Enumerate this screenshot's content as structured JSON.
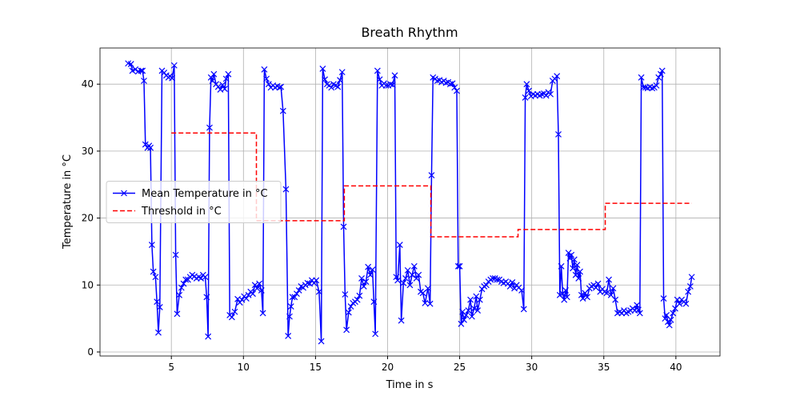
{
  "chart_data": {
    "type": "line",
    "title": "Breath Rhythm",
    "x_label": "Time in s",
    "y_label": "Temperature in °C",
    "xlim": [
      0.05,
      43.06
    ],
    "ylim": [
      -0.6,
      45.4
    ],
    "xticks": [
      5,
      10,
      15,
      20,
      25,
      30,
      35,
      40
    ],
    "yticks": [
      0,
      10,
      20,
      30,
      40
    ],
    "grid": true,
    "legend": "center left",
    "series": [
      {
        "name": "Mean Temperature in °C",
        "color": "#0000ff",
        "linestyle": "solid",
        "marker": "x",
        "x": [
          2.0,
          2.2,
          2.3,
          2.5,
          2.7,
          2.9,
          3.0,
          3.1,
          3.2,
          3.35,
          3.45,
          3.55,
          3.65,
          3.75,
          3.9,
          4.0,
          4.1,
          4.2,
          4.35,
          4.5,
          4.65,
          4.8,
          4.9,
          5.05,
          5.2,
          5.3,
          5.4,
          5.55,
          5.7,
          5.85,
          6.0,
          6.15,
          6.3,
          6.45,
          6.6,
          6.75,
          6.9,
          7.05,
          7.2,
          7.35,
          7.45,
          7.55,
          7.65,
          7.75,
          7.85,
          7.95,
          8.1,
          8.25,
          8.4,
          8.55,
          8.7,
          8.8,
          8.95,
          9.05,
          9.2,
          9.4,
          9.6,
          9.75,
          9.9,
          10.05,
          10.2,
          10.35,
          10.5,
          10.65,
          10.8,
          10.95,
          11.1,
          11.25,
          11.35,
          11.45,
          11.6,
          11.75,
          11.9,
          12.05,
          12.2,
          12.35,
          12.5,
          12.6,
          12.75,
          12.95,
          13.1,
          13.2,
          13.3,
          13.4,
          13.55,
          13.7,
          13.85,
          14.0,
          14.15,
          14.3,
          14.45,
          14.6,
          14.75,
          14.9,
          15.05,
          15.25,
          15.4,
          15.5,
          15.65,
          15.8,
          15.95,
          16.1,
          16.25,
          16.4,
          16.55,
          16.7,
          16.85,
          16.95,
          17.05,
          17.15,
          17.3,
          17.45,
          17.6,
          17.75,
          17.9,
          18.05,
          18.2,
          18.35,
          18.5,
          18.65,
          18.8,
          18.95,
          19.05,
          19.15,
          19.3,
          19.45,
          19.6,
          19.75,
          19.9,
          20.05,
          20.2,
          20.35,
          20.5,
          20.6,
          20.7,
          20.85,
          20.95,
          21.1,
          21.25,
          21.4,
          21.55,
          21.7,
          21.85,
          22.0,
          22.15,
          22.3,
          22.45,
          22.6,
          22.8,
          22.95,
          23.05,
          23.15,
          23.3,
          23.45,
          23.6,
          23.75,
          23.9,
          24.05,
          24.2,
          24.35,
          24.5,
          24.65,
          24.8,
          24.9,
          25.0,
          25.1,
          25.2,
          25.3,
          25.45,
          25.6,
          25.75,
          25.85,
          26.0,
          26.15,
          26.25,
          26.4,
          26.55,
          26.7,
          26.85,
          27.0,
          27.15,
          27.3,
          27.45,
          27.6,
          27.75,
          27.9,
          28.05,
          28.2,
          28.35,
          28.5,
          28.65,
          28.8,
          28.95,
          29.1,
          29.3,
          29.45,
          29.55,
          29.65,
          29.8,
          29.95,
          30.1,
          30.25,
          30.4,
          30.55,
          30.7,
          30.85,
          31.0,
          31.15,
          31.3,
          31.45,
          31.6,
          31.75,
          31.85,
          31.95,
          32.05,
          32.15,
          32.25,
          32.35,
          32.45,
          32.55,
          32.65,
          32.75,
          32.85,
          32.95,
          33.05,
          33.15,
          33.25,
          33.35,
          33.45,
          33.55,
          33.7,
          33.85,
          34.0,
          34.15,
          34.3,
          34.45,
          34.6,
          34.75,
          34.9,
          35.05,
          35.2,
          35.35,
          35.5,
          35.65,
          35.8,
          35.95,
          36.1,
          36.25,
          36.4,
          36.55,
          36.7,
          36.85,
          37.0,
          37.15,
          37.3,
          37.4,
          37.5,
          37.6,
          37.75,
          37.9,
          38.05,
          38.2,
          38.35,
          38.5,
          38.65,
          38.8,
          38.95,
          39.05,
          39.15,
          39.25,
          39.35,
          39.45,
          39.55,
          39.65,
          39.8,
          39.95,
          40.1,
          40.25,
          40.4,
          40.55,
          40.7,
          40.85,
          41.0,
          41.1
        ],
        "values": [
          43.1,
          43.0,
          42.0,
          42.2,
          41.9,
          42.0,
          42.0,
          40.5,
          31.0,
          30.5,
          30.8,
          30.5,
          16.0,
          12.0,
          11.2,
          7.5,
          2.9,
          6.7,
          42.0,
          41.7,
          41.3,
          41.0,
          41.2,
          40.9,
          42.8,
          14.5,
          5.7,
          8.5,
          9.6,
          10.2,
          10.8,
          10.8,
          11.2,
          11.5,
          11.3,
          11.0,
          11.2,
          11.0,
          11.5,
          11.2,
          8.2,
          2.3,
          33.5,
          41.0,
          40.5,
          41.5,
          40.0,
          39.6,
          39.2,
          39.9,
          39.3,
          40.8,
          41.5,
          5.5,
          5.2,
          6.0,
          7.9,
          7.4,
          7.8,
          8.3,
          8.0,
          8.5,
          9.0,
          8.7,
          10.0,
          9.5,
          10.2,
          9.2,
          5.8,
          42.2,
          40.8,
          40.0,
          39.5,
          39.8,
          39.5,
          39.7,
          39.5,
          39.6,
          36.0,
          24.3,
          2.4,
          5.3,
          6.8,
          8.2,
          8.2,
          8.7,
          9.2,
          9.8,
          9.6,
          10.0,
          10.3,
          10.2,
          10.7,
          10.3,
          10.7,
          9.0,
          1.6,
          42.3,
          40.7,
          40.0,
          39.8,
          39.5,
          40.0,
          39.8,
          39.6,
          40.6,
          41.8,
          18.7,
          8.6,
          3.3,
          5.9,
          6.8,
          7.3,
          7.5,
          7.8,
          8.4,
          11.0,
          9.8,
          10.5,
          12.7,
          11.5,
          12.3,
          7.5,
          2.7,
          42.0,
          40.7,
          39.8,
          40.1,
          39.8,
          39.8,
          40.0,
          39.9,
          41.3,
          11.2,
          10.7,
          16.0,
          4.7,
          10.3,
          11.0,
          12.2,
          10.0,
          11.5,
          12.8,
          11.0,
          11.5,
          9.0,
          8.8,
          7.3,
          9.5,
          7.2,
          26.4,
          41.0,
          40.8,
          40.5,
          40.6,
          40.3,
          40.5,
          40.2,
          40.3,
          40.0,
          40.1,
          39.5,
          39.0,
          12.8,
          12.8,
          4.2,
          6.0,
          4.8,
          5.5,
          6.2,
          7.8,
          5.3,
          6.5,
          8.3,
          6.2,
          7.8,
          9.4,
          9.8,
          10.0,
          10.5,
          10.8,
          11.0,
          11.0,
          10.8,
          10.8,
          10.5,
          10.3,
          10.5,
          10.2,
          9.8,
          10.4,
          9.5,
          10.0,
          9.6,
          9.2,
          6.4,
          38.0,
          40.0,
          39.0,
          38.2,
          38.5,
          38.3,
          38.5,
          38.3,
          38.5,
          38.6,
          38.3,
          38.8,
          38.5,
          40.5,
          40.8,
          41.2,
          32.5,
          8.5,
          12.8,
          8.7,
          7.8,
          9.2,
          8.2,
          14.8,
          14.0,
          14.5,
          12.5,
          13.8,
          11.5,
          13.0,
          11.0,
          12.0,
          8.5,
          8.0,
          8.8,
          8.2,
          9.5,
          9.8,
          10.0,
          9.6,
          10.2,
          9.0,
          9.4,
          9.0,
          8.8,
          10.8,
          8.5,
          9.5,
          7.8,
          5.8,
          6.0,
          5.8,
          6.2,
          5.8,
          6.0,
          6.2,
          6.5,
          6.2,
          7.0,
          6.3,
          5.8,
          41.0,
          39.5,
          39.5,
          39.4,
          39.6,
          39.4,
          39.5,
          39.8,
          41.0,
          41.5,
          42.0,
          8.0,
          5.0,
          5.5,
          4.5,
          4.0,
          4.8,
          5.8,
          6.5,
          7.8,
          7.2,
          7.8,
          7.5,
          7.2,
          9.0,
          9.8,
          11.2
        ]
      },
      {
        "name": "Threshold in °C",
        "color": "#ff0000",
        "linestyle": "dashed",
        "x": [
          5.0,
          10.9,
          10.9,
          17.0,
          17.0,
          23.0,
          23.0,
          29.05,
          29.05,
          35.1,
          35.1,
          41.1
        ],
        "values": [
          32.7,
          32.7,
          19.6,
          19.6,
          24.8,
          24.8,
          17.2,
          17.2,
          18.3,
          18.3,
          22.2,
          22.2
        ]
      }
    ]
  }
}
